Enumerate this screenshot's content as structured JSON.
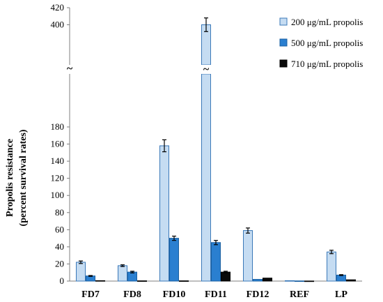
{
  "chart_data": {
    "type": "bar",
    "ylabel_line1": "Propolis resistance",
    "ylabel_line2": "(percent survival rates)",
    "categories": [
      "FD7",
      "FD8",
      "FD10",
      "FD11",
      "FD12",
      "REF",
      "LP"
    ],
    "series": [
      {
        "name": "200 μg/mL propolis",
        "color": "#c5dcf2",
        "stroke": "#3a78b8",
        "values": [
          22,
          18,
          158,
          400,
          59,
          0.5,
          34
        ],
        "errors": [
          1.5,
          1,
          7,
          8,
          3,
          0,
          2
        ]
      },
      {
        "name": "500 μg/mL propolis",
        "color": "#2a7fd0",
        "stroke": "#1a5fa0",
        "values": [
          6,
          10.5,
          50,
          45,
          2,
          0.2,
          7
        ],
        "errors": [
          0.5,
          1,
          2.5,
          2.5,
          0,
          0,
          0.5
        ]
      },
      {
        "name": "710 μg/mL propolis",
        "color": "#0a0a0a",
        "stroke": "#000000",
        "values": [
          0.5,
          0.3,
          0.3,
          10.5,
          3.5,
          0.1,
          1.5
        ],
        "errors": [
          0,
          0,
          0,
          1,
          0,
          0,
          0
        ]
      }
    ],
    "y_ticks_lower": [
      0,
      20,
      40,
      60,
      80,
      100,
      120,
      140,
      160,
      180
    ],
    "y_ticks_upper": [
      400,
      420
    ],
    "lower_range": [
      0,
      180
    ],
    "upper_range": [
      380,
      420
    ],
    "axis_break": "~",
    "legend_position": "top-right",
    "grid": false
  }
}
